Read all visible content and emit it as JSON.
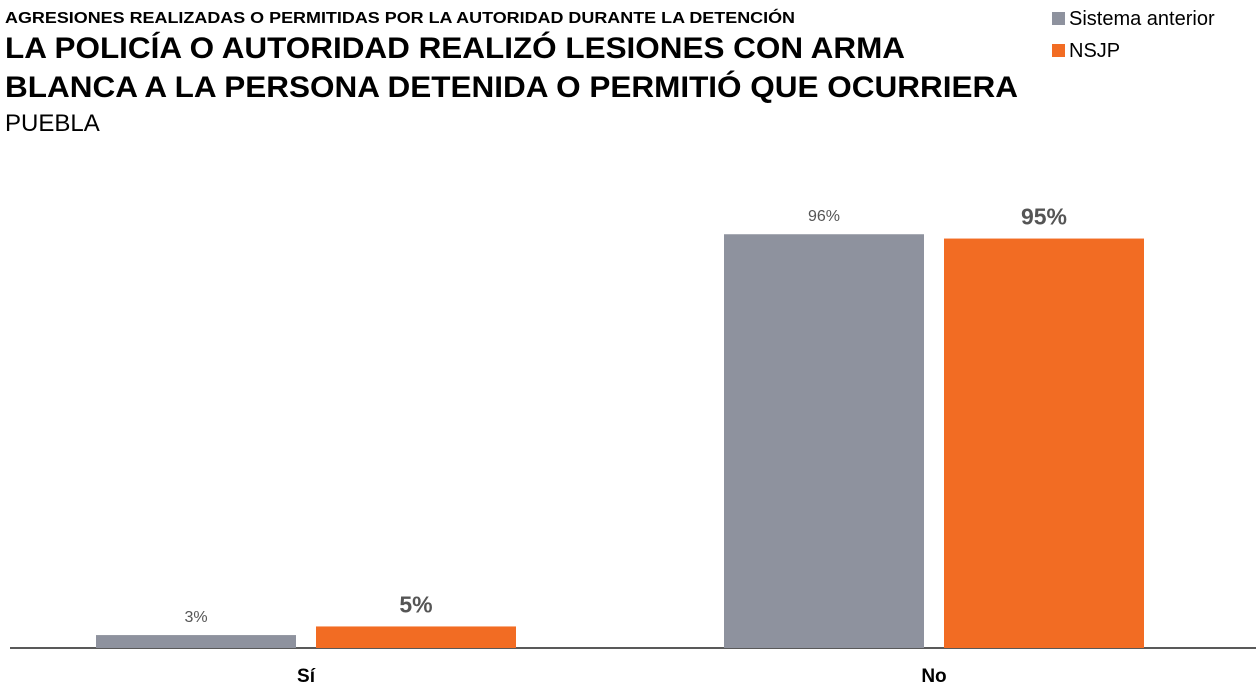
{
  "chart_data": {
    "type": "bar",
    "supertitle": "AGRESIONES REALIZADAS O PERMITIDAS POR LA AUTORIDAD DURANTE LA DETENCIÓN",
    "title": [
      "LA POLICÍA O AUTORIDAD REALIZÓ LESIONES CON ARMA",
      "BLANCA A LA PERSONA DETENIDA O PERMITIÓ QUE OCURRIERA"
    ],
    "subtitle": "PUEBLA",
    "categories": [
      "Sí",
      "No"
    ],
    "series": [
      {
        "name": "Sistema anterior",
        "color": "#8e929e",
        "values": [
          3,
          96
        ],
        "value_labels": [
          "3%",
          "96%"
        ]
      },
      {
        "name": "NSJP",
        "color": "#f26c23",
        "values": [
          5,
          95
        ],
        "value_labels": [
          "5%",
          "95%"
        ]
      }
    ],
    "ylim": [
      0,
      100
    ],
    "legend": "top-right"
  }
}
